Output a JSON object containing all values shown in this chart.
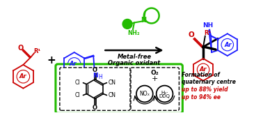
{
  "bg_color": "#ffffff",
  "red": "#cc0000",
  "blue": "#1a1aff",
  "green": "#22bb00",
  "black": "#000000",
  "box_green": "#22bb00",
  "figsize": [
    3.78,
    1.62
  ],
  "dpi": 100,
  "arrow_text_line1": "Metal-free",
  "arrow_text_line2": "Organic oxidant",
  "formation_line1": "Formation of",
  "formation_line2": "quaternary centre",
  "formation_line3": "up to 88% yield",
  "formation_line4": "up to 94% ee"
}
